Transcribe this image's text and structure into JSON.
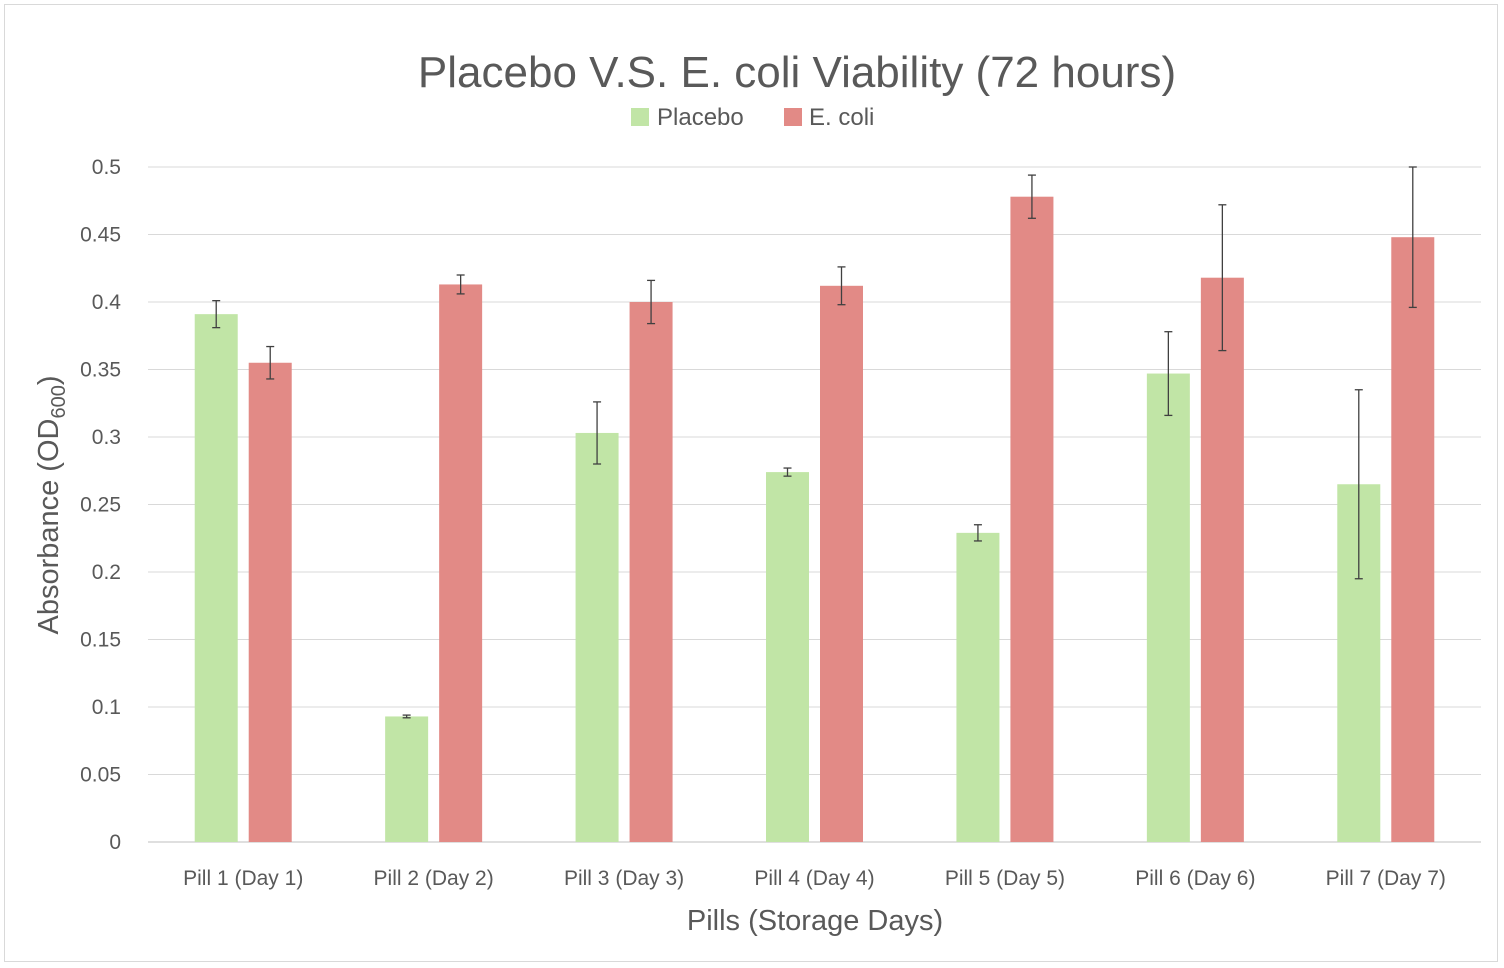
{
  "chart_data": {
    "type": "bar",
    "title": "Placebo V.S. E. coli Viability (72 hours)",
    "xlabel": "Pills (Storage Days)",
    "ylabel_main": "Absorbance (OD",
    "ylabel_sub": "600",
    "ylabel_close": ")",
    "ylim": [
      0,
      0.5
    ],
    "yticks": [
      "0",
      "0.05",
      "0.1",
      "0.15",
      "0.2",
      "0.25",
      "0.3",
      "0.35",
      "0.4",
      "0.45",
      "0.5"
    ],
    "yticks_values": [
      0,
      0.05,
      0.1,
      0.15,
      0.2,
      0.25,
      0.3,
      0.35,
      0.4,
      0.45,
      0.5
    ],
    "grid": true,
    "legend_position": "top",
    "categories": [
      "Pill 1 (Day 1)",
      "Pill 2 (Day 2)",
      "Pill 3 (Day 3)",
      "Pill 4 (Day 4)",
      "Pill 5 (Day 5)",
      "Pill 6 (Day 6)",
      "Pill 7 (Day 7)"
    ],
    "series": [
      {
        "name": "Placebo",
        "color": "#c1e5a6",
        "values": [
          0.391,
          0.093,
          0.303,
          0.274,
          0.229,
          0.347,
          0.265
        ],
        "error": [
          0.01,
          0.001,
          0.023,
          0.003,
          0.006,
          0.031,
          0.07
        ]
      },
      {
        "name": "E. coli",
        "color": "#e28a86",
        "values": [
          0.355,
          0.413,
          0.4,
          0.412,
          0.478,
          0.418,
          0.448
        ],
        "error": [
          0.012,
          0.007,
          0.016,
          0.014,
          0.016,
          0.054,
          0.052
        ]
      }
    ]
  }
}
